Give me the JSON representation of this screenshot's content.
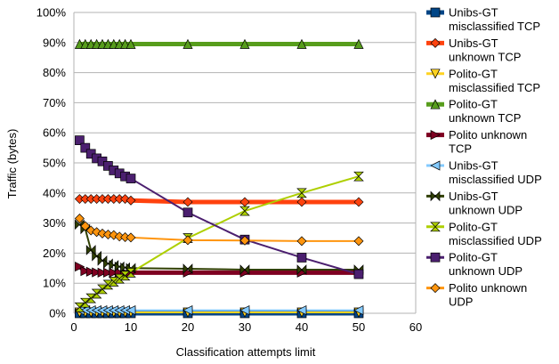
{
  "chart_data": {
    "type": "line",
    "title": "",
    "xlabel": "Classification attempts limit",
    "ylabel": "Traffic (bytes)",
    "xlim": [
      0,
      60
    ],
    "ylim": [
      0,
      100
    ],
    "x_ticks": [
      0,
      10,
      20,
      30,
      40,
      50,
      60
    ],
    "y_ticks": [
      0,
      10,
      20,
      30,
      40,
      50,
      60,
      70,
      80,
      90,
      100
    ],
    "x_tick_labels": [
      "0",
      "10",
      "20",
      "30",
      "40",
      "50",
      "60"
    ],
    "y_tick_labels": [
      "0%",
      "10%",
      "20%",
      "30%",
      "40%",
      "50%",
      "60%",
      "70%",
      "80%",
      "90%",
      "100%"
    ],
    "grid": "horizontal",
    "legend_position": "right",
    "series": [
      {
        "name": "Unibs-GT misclassified TCP",
        "legend_lines": [
          "Unibs-GT",
          "misclassified TCP"
        ],
        "color": "#004586",
        "marker": "square",
        "stroke_width": 5,
        "x": [
          1,
          2,
          3,
          4,
          5,
          6,
          7,
          8,
          9,
          10,
          20,
          30,
          40,
          50
        ],
        "y": [
          0,
          0,
          0,
          0,
          0,
          0,
          0,
          0,
          0,
          0,
          0,
          0,
          0,
          0
        ]
      },
      {
        "name": "Unibs-GT unknown TCP",
        "legend_lines": [
          "Unibs-GT",
          "unknown TCP"
        ],
        "color": "#ff420e",
        "marker": "diamond",
        "stroke_width": 5,
        "x": [
          1,
          2,
          3,
          4,
          5,
          6,
          7,
          8,
          9,
          10,
          20,
          30,
          40,
          50
        ],
        "y": [
          38,
          38,
          38,
          38,
          38,
          38,
          38,
          38,
          38,
          37.5,
          37,
          37,
          37,
          37
        ]
      },
      {
        "name": "Polito-GT misclassified TCP",
        "legend_lines": [
          "Polito-GT",
          "misclassified TCP"
        ],
        "color": "#ffd320",
        "marker": "triangle-down",
        "stroke_width": 2,
        "x": [
          1,
          2,
          3,
          4,
          5,
          6,
          7,
          8,
          9,
          10,
          20,
          30,
          40,
          50
        ],
        "y": [
          0.3,
          0.3,
          0.3,
          0.3,
          0.3,
          0.3,
          0.3,
          0.3,
          0.3,
          0.3,
          0.3,
          0.3,
          0.3,
          0.3
        ]
      },
      {
        "name": "Polito-GT unknown TCP",
        "legend_lines": [
          "Polito-GT",
          "unknown TCP"
        ],
        "color": "#579d1c",
        "marker": "triangle-up",
        "stroke_width": 5,
        "x": [
          1,
          2,
          3,
          4,
          5,
          6,
          7,
          8,
          9,
          10,
          20,
          30,
          40,
          50
        ],
        "y": [
          89.5,
          89.5,
          89.5,
          89.5,
          89.5,
          89.5,
          89.5,
          89.5,
          89.5,
          89.5,
          89.5,
          89.5,
          89.5,
          89.5
        ]
      },
      {
        "name": "Polito unknown TCP",
        "legend_lines": [
          "Polito unknown",
          "TCP"
        ],
        "color": "#7e0021",
        "marker": "triangle-right",
        "stroke_width": 5,
        "x": [
          1,
          2,
          3,
          4,
          5,
          6,
          7,
          8,
          9,
          10,
          20,
          30,
          40,
          50
        ],
        "y": [
          15.5,
          14,
          13.8,
          13.6,
          13.5,
          13.5,
          13.5,
          13.5,
          13.5,
          13.5,
          13.5,
          13.5,
          13.5,
          13.5
        ]
      },
      {
        "name": "Unibs-GT misclassified UDP",
        "legend_lines": [
          "Unibs-GT",
          "misclassified UDP"
        ],
        "color": "#83caff",
        "marker": "triangle-left",
        "stroke_width": 2,
        "x": [
          1,
          2,
          3,
          4,
          5,
          6,
          7,
          8,
          9,
          10,
          20,
          30,
          40,
          50
        ],
        "y": [
          1,
          1,
          1,
          1,
          1,
          1,
          1,
          1,
          1,
          1,
          1,
          1,
          1,
          1
        ]
      },
      {
        "name": "Unibs-GT unknown UDP",
        "legend_lines": [
          "Unibs-GT",
          "unknown UDP"
        ],
        "color": "#314004",
        "marker": "bowtie",
        "stroke_width": 2,
        "x": [
          1,
          2,
          3,
          4,
          5,
          6,
          7,
          8,
          9,
          10,
          20,
          30,
          40,
          50
        ],
        "y": [
          29.5,
          28,
          21,
          19,
          17.5,
          16.5,
          16,
          15.5,
          15.2,
          15,
          14.8,
          14.5,
          14.5,
          14.5
        ]
      },
      {
        "name": "Polito-GT misclassified UDP",
        "legend_lines": [
          "Polito-GT",
          "misclassified UDP"
        ],
        "color": "#aecf00",
        "marker": "hourglass",
        "stroke_width": 2,
        "x": [
          1,
          2,
          3,
          4,
          5,
          6,
          7,
          8,
          9,
          10,
          20,
          30,
          40,
          50
        ],
        "y": [
          2,
          3.5,
          5,
          6.5,
          8,
          9.5,
          10.5,
          11.5,
          12.5,
          13.5,
          25,
          34,
          40,
          45.5
        ]
      },
      {
        "name": "Polito-GT unknown UDP",
        "legend_lines": [
          "Polito-GT",
          "unknown UDP"
        ],
        "color": "#4b1f6f",
        "marker": "square",
        "stroke_width": 2,
        "x": [
          1,
          2,
          3,
          4,
          5,
          6,
          7,
          8,
          9,
          10,
          20,
          30,
          40,
          50
        ],
        "y": [
          57.5,
          55,
          53,
          51.5,
          50.5,
          49,
          47.5,
          46.5,
          45.5,
          44.8,
          33.5,
          24.5,
          18.5,
          13
        ]
      },
      {
        "name": "Polito unknown UDP",
        "legend_lines": [
          "Polito unknown",
          "UDP"
        ],
        "color": "#ff950e",
        "marker": "diamond",
        "stroke_width": 2,
        "x": [
          1,
          2,
          3,
          4,
          5,
          6,
          7,
          8,
          9,
          10,
          20,
          30,
          40,
          50
        ],
        "y": [
          31.5,
          29,
          27.5,
          27,
          26.5,
          26.2,
          26,
          25.5,
          25.3,
          25.2,
          24.3,
          24.2,
          24,
          24
        ]
      }
    ]
  }
}
